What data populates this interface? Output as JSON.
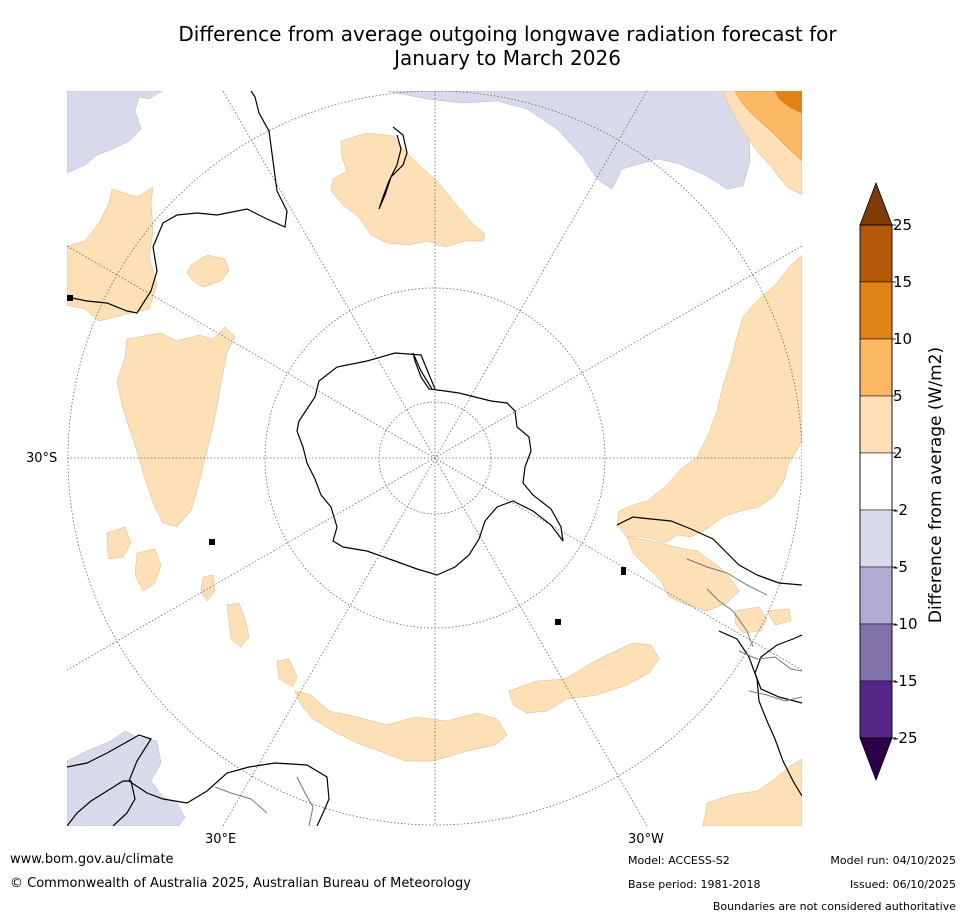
{
  "title_line1": "Difference from average outgoing longwave radiation forecast for",
  "title_line2": "January to March 2026",
  "map": {
    "projection": "south-polar-stereographic",
    "graticule_labels": {
      "left": "30°S",
      "bottom_left": "30°E",
      "bottom_right": "30°W"
    },
    "colors": {
      "ocean": "#ffffff",
      "pos_2_5": "#fde0b5",
      "pos_5_10": "#fdb863",
      "pos_10_15": "#e08214",
      "neg_2_5": "#d8daeb",
      "coast": "#000000",
      "border": "#777777"
    }
  },
  "colorbar": {
    "title": "Difference from average (W/m2)",
    "levels": [
      "25",
      "15",
      "10",
      "5",
      "2",
      "-2",
      "-5",
      "-10",
      "-15",
      "-25"
    ],
    "colors": [
      "#b35806",
      "#e08214",
      "#fdb863",
      "#fee0b6",
      "#ffffff",
      "#d8daeb",
      "#b2abd2",
      "#8073ac",
      "#542788"
    ],
    "over_color": "#7f3b08",
    "under_color": "#2d004b"
  },
  "footer": {
    "website": "www.bom.gov.au/climate",
    "copyright": "© Commonwealth of Australia 2025, Australian Bureau of Meteorology",
    "model": "Model: ACCESS-S2",
    "base_period": "Base period: 1981-2018",
    "model_run": "Model run: 04/10/2025",
    "issued": "Issued: 06/10/2025",
    "disclaimer": "Boundaries are not considered authoritative"
  }
}
